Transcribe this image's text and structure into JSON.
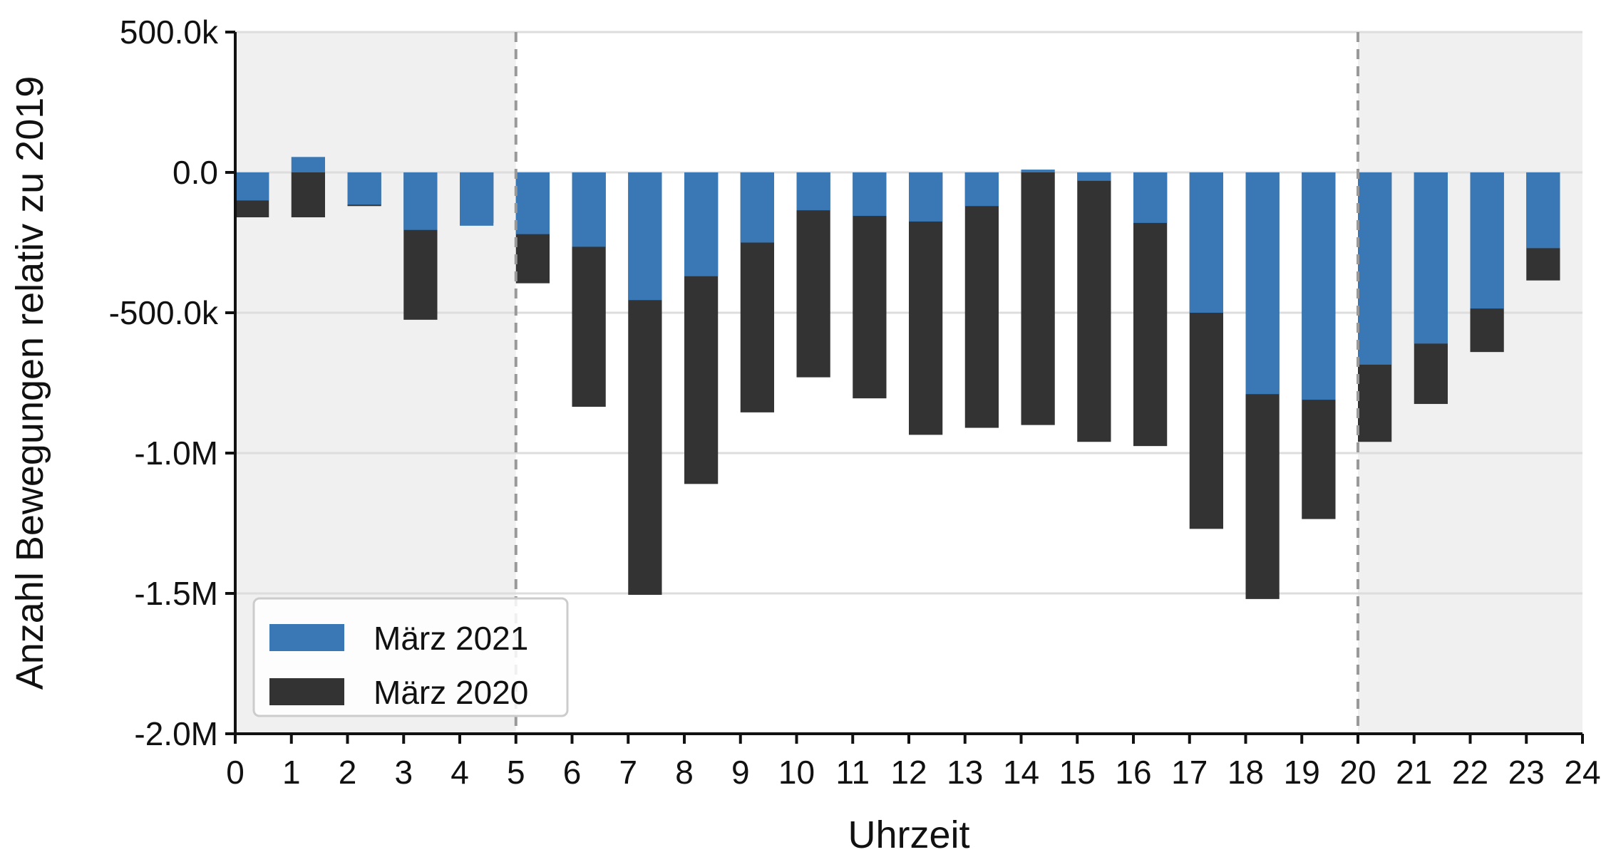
{
  "chart_data": {
    "type": "bar",
    "xlabel": "Uhrzeit",
    "ylabel": "Anzahl Bewegungen relativ zu 2019",
    "xlim": [
      0,
      24
    ],
    "ylim": [
      -2000000,
      500000
    ],
    "x_ticks": [
      "0",
      "1",
      "2",
      "3",
      "4",
      "5",
      "6",
      "7",
      "8",
      "9",
      "10",
      "11",
      "12",
      "13",
      "14",
      "15",
      "16",
      "17",
      "18",
      "19",
      "20",
      "21",
      "22",
      "23",
      "24"
    ],
    "y_ticks": [
      {
        "value": 500000,
        "label": "500.0k"
      },
      {
        "value": 0,
        "label": "0.0"
      },
      {
        "value": -500000,
        "label": "-500.0k"
      },
      {
        "value": -1000000,
        "label": "-1.0M"
      },
      {
        "value": -1500000,
        "label": "-1.5M"
      },
      {
        "value": -2000000,
        "label": "-2.0M"
      }
    ],
    "categories": [
      0,
      1,
      2,
      3,
      4,
      5,
      6,
      7,
      8,
      9,
      10,
      11,
      12,
      13,
      14,
      15,
      16,
      17,
      18,
      19,
      20,
      21,
      22,
      23
    ],
    "series": [
      {
        "name": "März 2020",
        "color": "#333333",
        "values": [
          -160000,
          -160000,
          -120000,
          -525000,
          -180000,
          -395000,
          -835000,
          -1505000,
          -1110000,
          -855000,
          -730000,
          -805000,
          -935000,
          -910000,
          -900000,
          -960000,
          -975000,
          -1270000,
          -1520000,
          -1235000,
          -960000,
          -825000,
          -640000,
          -385000
        ]
      },
      {
        "name": "März 2021",
        "color": "#3a78b5",
        "values": [
          -100000,
          55000,
          -115000,
          -205000,
          -190000,
          -220000,
          -265000,
          -455000,
          -370000,
          -250000,
          -135000,
          -155000,
          -175000,
          -120000,
          10000,
          -30000,
          -180000,
          -500000,
          -790000,
          -810000,
          -685000,
          -610000,
          -485000,
          -270000
        ]
      }
    ],
    "shaded_regions": [
      [
        0,
        5
      ],
      [
        20,
        24
      ]
    ],
    "vlines": [
      5,
      20
    ],
    "grid": "horizontal",
    "legend": {
      "position": "lower-left",
      "items": [
        "März 2021",
        "März 2020"
      ]
    }
  }
}
